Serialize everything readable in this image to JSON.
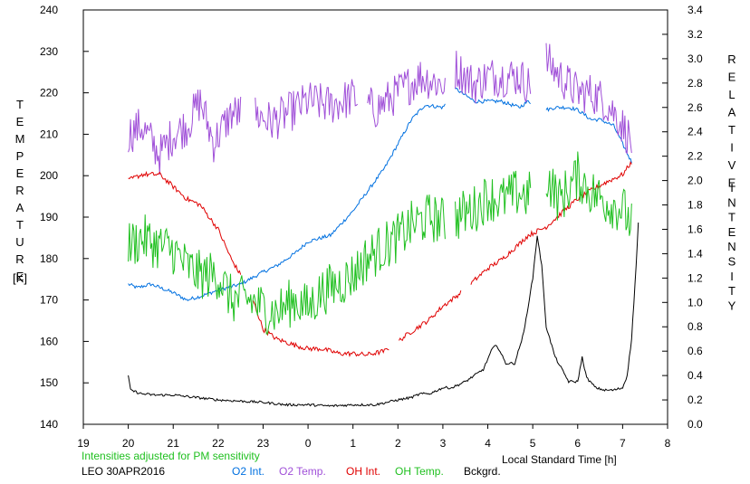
{
  "chart_data": {
    "type": "line",
    "footer_note": "Intensities adjusted for PM sensitivity",
    "station_date": "LEO 30APR2016",
    "xlabel": "Local Standard Time [h]",
    "ylabel_left_letters": [
      "T",
      "E",
      "M",
      "P",
      "E",
      "R",
      "A",
      "T",
      "U",
      "R",
      "E"
    ],
    "ylabel_left_unit": "[K]",
    "ylabel_right_letters_1": [
      "R",
      "E",
      "L",
      "A",
      "T",
      "I",
      "V",
      "E"
    ],
    "ylabel_right_letters_2": [
      "I",
      "N",
      "T",
      "E",
      "N",
      "S",
      "I",
      "T",
      "Y"
    ],
    "x_ticks": [
      "19",
      "20",
      "21",
      "22",
      "23",
      "0",
      "1",
      "2",
      "3",
      "4",
      "5",
      "6",
      "7",
      "8"
    ],
    "xlim": [
      19,
      32
    ],
    "ylim_left": [
      140,
      240
    ],
    "y_ticks_left": [
      "140",
      "150",
      "160",
      "170",
      "180",
      "190",
      "200",
      "210",
      "220",
      "230",
      "240"
    ],
    "ylim_right": [
      0.0,
      3.4
    ],
    "y_ticks_right": [
      "0.0",
      "0.2",
      "0.4",
      "0.6",
      "0.8",
      "1.0",
      "1.2",
      "1.4",
      "1.6",
      "1.8",
      "2.0",
      "2.2",
      "2.4",
      "2.6",
      "2.8",
      "3.0",
      "3.2",
      "3.4"
    ],
    "colors": {
      "o2_int": "#0070e0",
      "o2_temp": "#a050d8",
      "oh_int": "#e00000",
      "oh_temp": "#20c020",
      "background": "#000000",
      "footer_note": "#20c020"
    },
    "series": [
      {
        "name": "O2 Int.",
        "axis": "right",
        "color_key": "o2_int",
        "noise": 0.015,
        "x": [
          20.0,
          20.2,
          20.5,
          21.0,
          21.3,
          21.6,
          22.0,
          22.5,
          23.0,
          23.3,
          23.7,
          24.0,
          24.5,
          25.0,
          25.3,
          25.7,
          26.0,
          26.3,
          26.6,
          27.0,
          27.3,
          27.7,
          28.0,
          28.3,
          28.7,
          28.9,
          29.3,
          29.5,
          29.8,
          30.0,
          30.3,
          30.5,
          30.8,
          31.0,
          31.2
        ],
        "y": [
          1.15,
          1.12,
          1.15,
          1.08,
          1.02,
          1.05,
          1.1,
          1.15,
          1.25,
          1.3,
          1.4,
          1.5,
          1.55,
          1.75,
          1.9,
          2.1,
          2.3,
          2.5,
          2.62,
          2.6,
          2.75,
          2.65,
          2.65,
          2.65,
          2.6,
          2.65,
          2.58,
          2.6,
          2.6,
          2.58,
          2.5,
          2.5,
          2.45,
          2.3,
          2.15
        ],
        "gaps": [
          [
            27.05,
            27.25
          ],
          [
            28.95,
            29.28
          ]
        ]
      },
      {
        "name": "O2 Temp.",
        "axis": "left",
        "color_key": "o2_temp",
        "noise": 5,
        "x": [
          20.0,
          20.3,
          20.7,
          21.0,
          21.3,
          21.6,
          21.9,
          22.3,
          22.8,
          23.2,
          23.7,
          24.0,
          24.5,
          25.0,
          25.5,
          26.0,
          26.5,
          27.0,
          27.3,
          27.7,
          28.0,
          28.3,
          28.7,
          28.9,
          29.3,
          29.6,
          30.0,
          30.3,
          30.6,
          30.9,
          31.2
        ],
        "y": [
          210,
          212,
          205,
          210,
          212,
          218,
          208,
          215,
          215,
          213,
          216,
          218,
          217,
          219,
          216,
          220,
          224,
          222,
          226,
          222,
          224,
          224,
          224,
          222,
          228,
          224,
          220,
          220,
          218,
          214,
          208
        ],
        "gaps": [
          [
            22.5,
            22.8
          ],
          [
            25.1,
            25.3
          ],
          [
            27.05,
            27.25
          ],
          [
            28.95,
            29.28
          ]
        ]
      },
      {
        "name": "OH Int.",
        "axis": "right",
        "color_key": "oh_int",
        "noise": 0.02,
        "x": [
          20.0,
          20.3,
          20.7,
          21.0,
          21.3,
          21.6,
          22.0,
          22.3,
          22.7,
          23.0,
          23.3,
          23.7,
          24.0,
          24.3,
          24.7,
          25.0,
          25.3,
          25.7,
          26.0,
          26.3,
          26.7,
          27.0,
          27.3,
          27.7,
          28.0,
          28.3,
          28.7,
          28.9,
          29.3,
          29.6,
          30.0,
          30.3,
          30.6,
          31.0,
          31.2
        ],
        "y": [
          2.0,
          2.05,
          2.05,
          1.95,
          1.85,
          1.8,
          1.6,
          1.35,
          1.1,
          0.78,
          0.7,
          0.65,
          0.62,
          0.62,
          0.58,
          0.58,
          0.57,
          0.6,
          0.68,
          0.76,
          0.86,
          0.97,
          1.05,
          1.18,
          1.28,
          1.35,
          1.48,
          1.55,
          1.62,
          1.72,
          1.85,
          1.92,
          1.98,
          2.05,
          2.15
        ],
        "gaps": [
          [
            22.52,
            22.75
          ],
          [
            25.8,
            26.0
          ],
          [
            27.4,
            27.6
          ]
        ]
      },
      {
        "name": "OH Temp.",
        "axis": "left",
        "color_key": "oh_temp",
        "noise": 6,
        "x": [
          20.0,
          20.3,
          20.7,
          21.0,
          21.3,
          21.6,
          22.0,
          22.3,
          22.7,
          23.0,
          23.3,
          23.7,
          24.0,
          24.3,
          24.7,
          25.0,
          25.3,
          25.7,
          26.0,
          26.3,
          26.7,
          27.0,
          27.3,
          27.7,
          28.0,
          28.3,
          28.7,
          28.9,
          29.3,
          29.6,
          30.0,
          30.3,
          30.6,
          31.0,
          31.2
        ],
        "y": [
          183,
          185,
          183,
          182,
          178,
          176,
          176,
          170,
          170,
          168,
          167,
          170,
          168,
          172,
          174,
          176,
          180,
          183,
          185,
          188,
          190,
          189,
          190,
          192,
          195,
          194,
          196,
          195,
          200,
          194,
          200,
          196,
          194,
          192,
          188
        ],
        "gaps": [
          [
            27.05,
            27.25
          ],
          [
            28.95,
            29.28
          ]
        ]
      },
      {
        "name": "Bckgrd.",
        "axis": "right",
        "color_key": "background",
        "noise": 0.01,
        "x": [
          20.0,
          20.05,
          20.3,
          20.6,
          21.0,
          21.5,
          22.0,
          22.5,
          23.0,
          23.5,
          24.0,
          24.5,
          25.0,
          25.5,
          26.0,
          26.3,
          26.5,
          26.7,
          27.0,
          27.2,
          27.5,
          27.7,
          27.9,
          28.1,
          28.2,
          28.4,
          28.6,
          28.8,
          29.0,
          29.1,
          29.2,
          29.3,
          29.5,
          29.8,
          30.0,
          30.1,
          30.2,
          30.4,
          30.6,
          30.8,
          31.0,
          31.1,
          31.2,
          31.3,
          31.35
        ],
        "y": [
          0.4,
          0.28,
          0.25,
          0.24,
          0.24,
          0.22,
          0.2,
          0.19,
          0.18,
          0.16,
          0.16,
          0.15,
          0.16,
          0.16,
          0.2,
          0.22,
          0.25,
          0.25,
          0.3,
          0.3,
          0.35,
          0.4,
          0.45,
          0.62,
          0.65,
          0.5,
          0.5,
          0.75,
          1.2,
          1.55,
          1.3,
          0.8,
          0.55,
          0.35,
          0.35,
          0.55,
          0.38,
          0.3,
          0.28,
          0.28,
          0.3,
          0.4,
          0.7,
          1.3,
          1.65
        ]
      }
    ]
  }
}
